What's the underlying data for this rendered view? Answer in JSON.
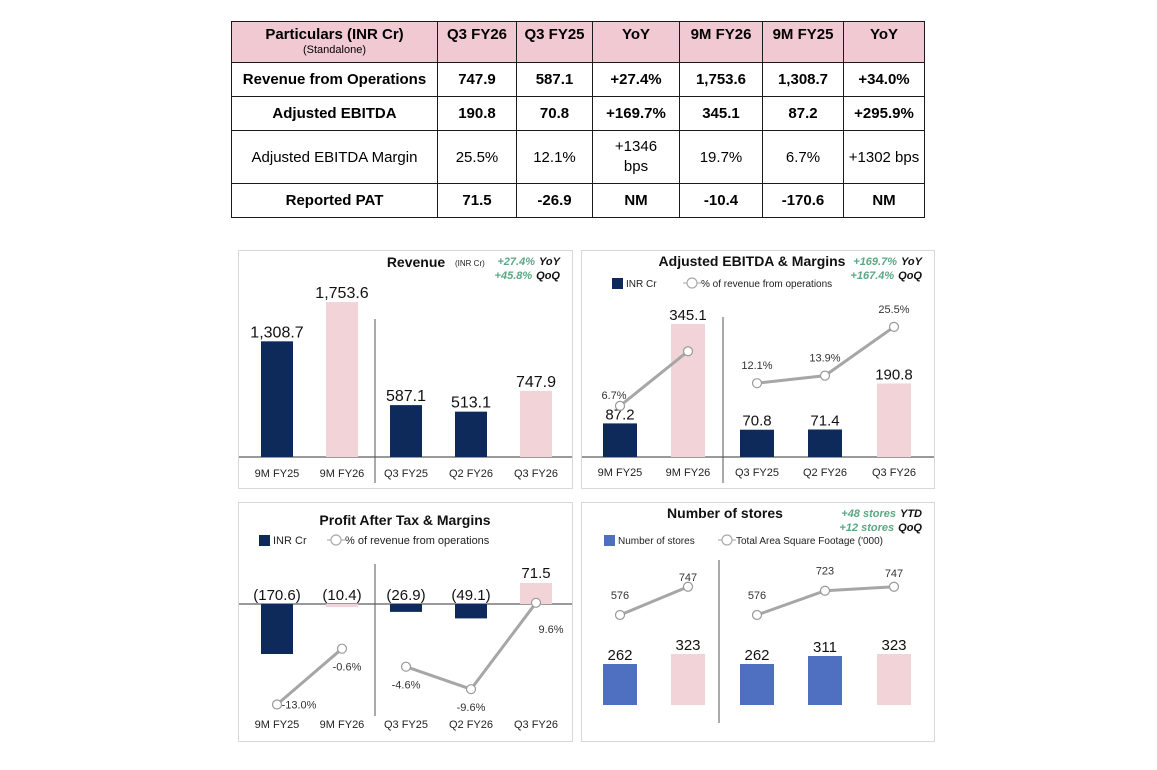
{
  "table": {
    "header_title": "Particulars (INR Cr)",
    "header_subtitle": "(Standalone)",
    "columns": [
      "Q3 FY26",
      "Q3 FY25",
      "YoY",
      "9M FY26",
      "9M FY25",
      "YoY"
    ],
    "rows": [
      {
        "label": "Revenue from Operations",
        "bold": true,
        "cells": [
          "747.9",
          "587.1",
          "+27.4%",
          "1,753.6",
          "1,308.7",
          "+34.0%"
        ]
      },
      {
        "label": "Adjusted EBITDA",
        "bold": true,
        "cells": [
          "190.8",
          "70.8",
          "+169.7%",
          "345.1",
          "87.2",
          "+295.9%"
        ]
      },
      {
        "label": "Adjusted EBITDA Margin",
        "bold": false,
        "cells": [
          "25.5%",
          "12.1%",
          "+1346 bps",
          "19.7%",
          "6.7%",
          "+1302 bps"
        ]
      },
      {
        "label": "Reported PAT",
        "bold": true,
        "cells": [
          "71.5",
          "-26.9",
          "NM",
          "-10.4",
          "-170.6",
          "NM"
        ]
      }
    ],
    "header_color": "#f0c9d2"
  },
  "colors": {
    "navy": "#0e2a5a",
    "pink": "#f2d3d7",
    "blue": "#4f70c0",
    "line": "#a6a6a6",
    "green": "#5aa883"
  },
  "chart_data": [
    {
      "type": "bar",
      "title": "Revenue",
      "title_unit": "(INR Cr)",
      "annotations": [
        {
          "value": "+27.4%",
          "label": "YoY"
        },
        {
          "value": "+45.8%",
          "label": "QoQ"
        }
      ],
      "categories": [
        "9M FY25",
        "9M FY26",
        "Q3 FY25",
        "Q2 FY26",
        "Q3 FY26"
      ],
      "values": [
        1308.7,
        1753.6,
        587.1,
        513.1,
        747.9
      ],
      "value_labels": [
        "1,308.7",
        "1,753.6",
        "587.1",
        "513.1",
        "747.9"
      ],
      "bar_colors": [
        "navy",
        "pink",
        "navy",
        "navy",
        "pink"
      ],
      "ylim": [
        0,
        1900
      ],
      "separator_after_index": 1,
      "legend": []
    },
    {
      "type": "bar",
      "title": "Adjusted EBITDA & Margins",
      "annotations": [
        {
          "value": "+169.7%",
          "label": "YoY"
        },
        {
          "value": "+167.4%",
          "label": "QoQ"
        }
      ],
      "categories": [
        "9M FY25",
        "9M FY26",
        "Q3 FY25",
        "Q2 FY26",
        "Q3 FY26"
      ],
      "values": [
        87.2,
        345.1,
        70.8,
        71.4,
        190.8
      ],
      "value_labels": [
        "87.2",
        "345.1",
        "70.8",
        "71.4",
        "190.8"
      ],
      "bar_colors": [
        "navy",
        "pink",
        "navy",
        "navy",
        "pink"
      ],
      "ylim": [
        0,
        400
      ],
      "separator_after_index": 1,
      "legend": [
        "INR Cr",
        "% of revenue from operations"
      ],
      "line_series": {
        "name": "% of revenue from operations",
        "values": [
          6.7,
          19.7,
          12.1,
          13.9,
          25.5
        ],
        "labels": [
          "6.7%",
          "",
          "12.1%",
          "13.9%",
          "25.5%"
        ],
        "ylim": [
          -8,
          30
        ]
      }
    },
    {
      "type": "bar",
      "title": "Profit After Tax & Margins",
      "annotations": [],
      "categories": [
        "9M FY25",
        "9M FY26",
        "Q3 FY25",
        "Q2 FY26",
        "Q3 FY26"
      ],
      "values": [
        -170.6,
        -10.4,
        -26.9,
        -49.1,
        71.5
      ],
      "value_labels": [
        "(170.6)",
        "(10.4)",
        "(26.9)",
        "(49.1)",
        "71.5"
      ],
      "bar_colors": [
        "navy",
        "pink",
        "navy",
        "navy",
        "pink"
      ],
      "ylim": [
        -450,
        100
      ],
      "separator_after_index": 1,
      "legend": [
        "INR Cr",
        "% of revenue from operations"
      ],
      "line_series": {
        "name": "% of revenue from operations",
        "values": [
          -13.0,
          -0.6,
          -4.6,
          -9.6,
          9.6
        ],
        "labels": [
          "-13.0%",
          "-0.6%",
          "-4.6%",
          "-9.6%",
          "9.6%"
        ],
        "ylim": [
          -14,
          11
        ]
      }
    },
    {
      "type": "bar",
      "title": "Number of stores",
      "annotations": [
        {
          "value": "+48 stores",
          "label": "YTD"
        },
        {
          "value": "+12 stores",
          "label": "QoQ"
        }
      ],
      "categories": [
        "",
        "",
        "",
        "",
        ""
      ],
      "values": [
        262,
        323,
        262,
        311,
        323
      ],
      "value_labels": [
        "262",
        "323",
        "262",
        "311",
        "323"
      ],
      "bar_colors": [
        "blue",
        "pink",
        "blue",
        "blue",
        "pink"
      ],
      "ylim": [
        0,
        900
      ],
      "separator_after_index": 1,
      "legend": [
        "Number of stores",
        "Total Area Square Footage ('000)"
      ],
      "line_series": {
        "name": "Total Area Square Footage ('000)",
        "values": [
          576,
          747,
          576,
          723,
          747
        ],
        "labels": [
          "576",
          "747",
          "576",
          "723",
          "747"
        ],
        "ylim": [
          0,
          900
        ]
      }
    }
  ]
}
